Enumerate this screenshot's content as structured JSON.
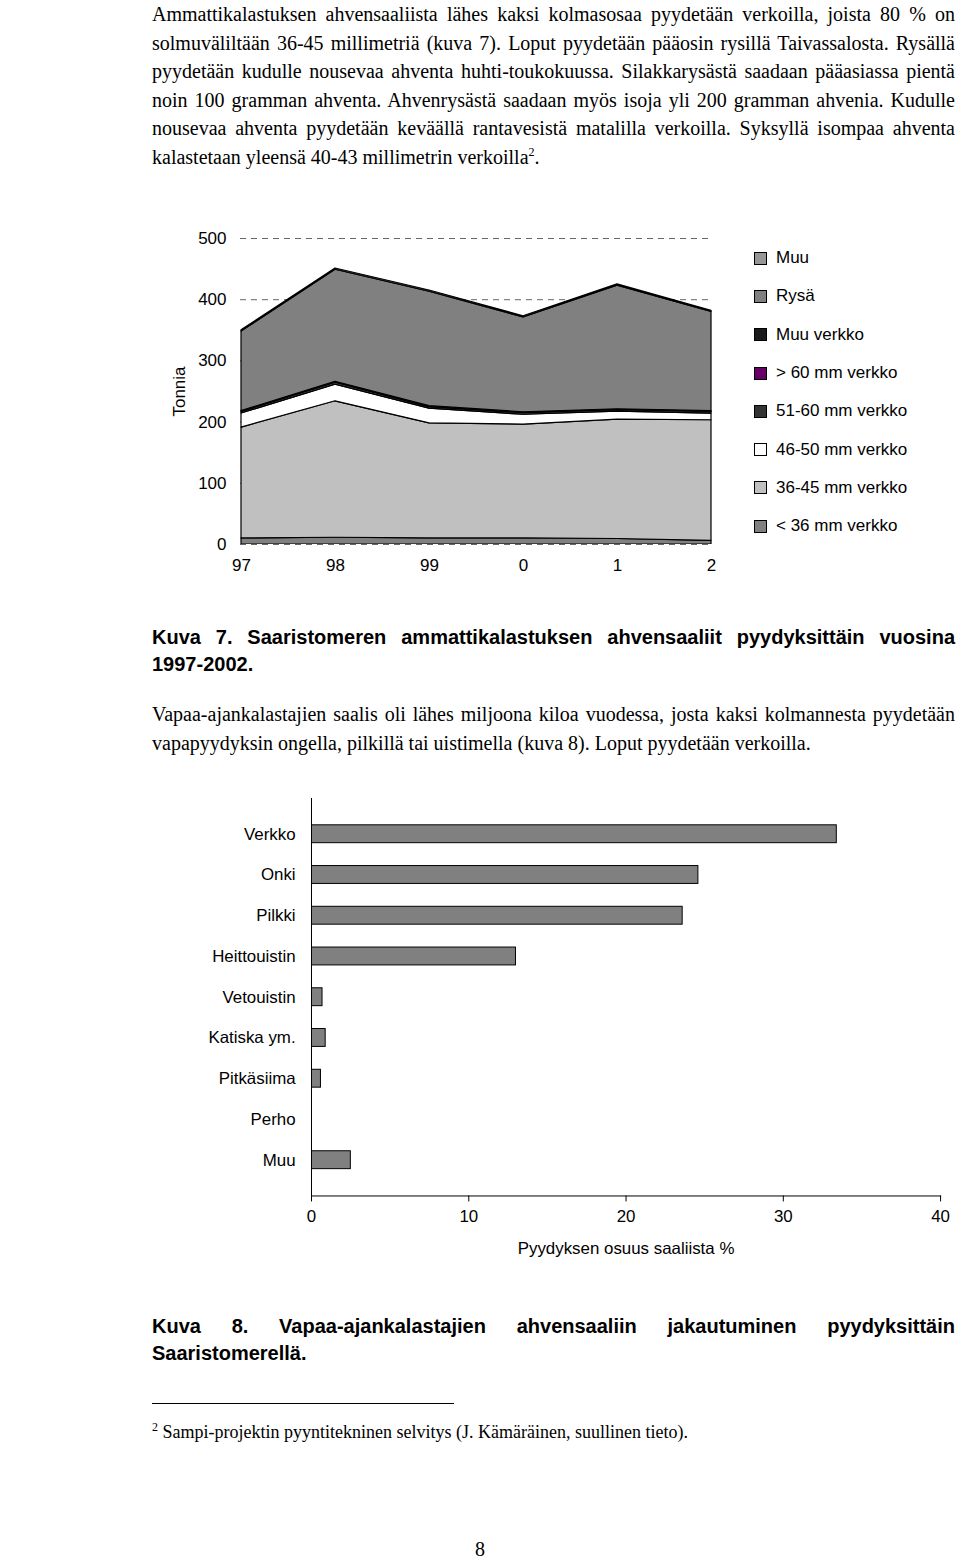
{
  "page": {
    "paragraphs": [
      {
        "text": "Ammattikalastuksen ahvensaaliista lähes kaksi kolmasosaa pyydetään verkoilla, joista 80 % on solmuväliltään 36-45 millimetriä (kuva 7). Loput pyydetään pääosin rysillä Taivassalosta. Rysällä pyydetään kudulle nousevaa ahventa huhti-toukokuussa. Silakkarysästä saadaan pääasiassa pientä noin 100 gramman ahventa. Ahvenrysästä saadaan myös isoja yli 200 gramman ahvenia. Kudulle nousevaa ahventa pyydetään keväällä rantavesistä matalilla verkoilla. Syksyllä isompaa ahventa kalastetaan yleensä 40-43 millimetrin verkoilla",
        "footnote_ref": "2",
        "text_after": "."
      },
      {
        "text": "Vapaa-ajankalastajien saalis oli lähes miljoona kiloa vuodessa, josta kaksi kolmannesta pyydetään vapapyydyksin ongella, pilkillä tai uistimella (kuva 8). Loput pyydetään verkoilla."
      }
    ],
    "footnote": {
      "ref": "2",
      "text": "Sampi-projektin pyyntitekninen selvitys (J. Kämäräinen, suullinen tieto)."
    },
    "page_number": "8"
  },
  "chart_data": [
    {
      "type": "area",
      "stacked": true,
      "title": "Kuva 7. Saaristomeren ammattikalastuksen ahvensaaliit pyydyksittäin vuosina 1997-2002.",
      "ylabel": "Tonnia",
      "categories": [
        "97",
        "98",
        "99",
        "0",
        "1",
        "2"
      ],
      "ylim": [
        0,
        500
      ],
      "yticks": [
        0,
        100,
        200,
        300,
        400,
        500
      ],
      "grid": true,
      "legend": "right",
      "series": [
        {
          "name": "< 36 mm verkko",
          "color": "#808080",
          "values": [
            10,
            11,
            10,
            10,
            9,
            6
          ]
        },
        {
          "name": "36-45 mm verkko",
          "color": "#c0c0c0",
          "values": [
            181,
            223,
            188,
            186,
            195,
            197
          ]
        },
        {
          "name": "46-50 mm verkko",
          "color": "#ffffff",
          "values": [
            23,
            27,
            24,
            16,
            13,
            11
          ]
        },
        {
          "name": "51-60 mm verkko",
          "color": "#333333",
          "values": [
            3,
            4,
            3,
            3,
            3,
            3
          ]
        },
        {
          "name": "> 60 mm verkko",
          "color": "#660066",
          "values": [
            0,
            0,
            0,
            0,
            0,
            0
          ]
        },
        {
          "name": "Muu verkko",
          "color": "#1a1a1a",
          "values": [
            1,
            1,
            1,
            1,
            1,
            1
          ]
        },
        {
          "name": "Rysä",
          "color": "#808080",
          "values": [
            130,
            183,
            187,
            155,
            202,
            162
          ]
        },
        {
          "name": "Muu",
          "color": "#969696",
          "values": [
            2,
            2,
            2,
            2,
            2,
            2
          ]
        }
      ]
    },
    {
      "type": "bar",
      "orientation": "horizontal",
      "grid": false,
      "title": "Kuva 8. Vapaa-ajankalastajien ahvensaaliin jakautuminen pyydyksittäin Saaristomerellä.",
      "xlabel": "Pyydyksen osuus saaliista %",
      "categories": [
        "Verkko",
        "Onki",
        "Pilkki",
        "Heittouistin",
        "Vetouistin",
        "Katiska ym.",
        "Pitkäsiima",
        "Perho",
        "Muu"
      ],
      "values": [
        33.4,
        24.6,
        23.6,
        13.0,
        0.7,
        0.9,
        0.6,
        0,
        2.5
      ],
      "color": "#808080",
      "xlim": [
        0,
        40
      ],
      "xticks": [
        0,
        10,
        20,
        30,
        40
      ]
    }
  ]
}
